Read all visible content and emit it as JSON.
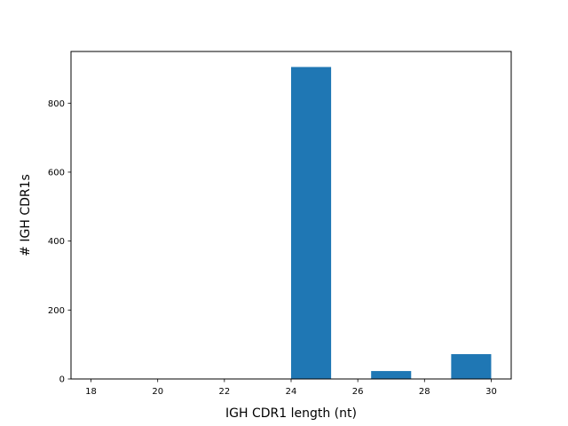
{
  "chart_data": {
    "type": "bar",
    "title": "",
    "xlabel": "IGH CDR1 length (nt)",
    "ylabel": "# IGH CDR1s",
    "xlim": [
      17.4,
      30.6
    ],
    "ylim": [
      0,
      950
    ],
    "x_ticks": [
      18,
      20,
      22,
      24,
      26,
      28,
      30
    ],
    "y_ticks": [
      0,
      200,
      400,
      600,
      800
    ],
    "grid": false,
    "legend": "none",
    "bar_color": "#1f77b4",
    "bins": [
      {
        "x_start": 18.0,
        "x_end": 19.2,
        "value": 0
      },
      {
        "x_start": 19.2,
        "x_end": 20.4,
        "value": 0
      },
      {
        "x_start": 20.4,
        "x_end": 21.6,
        "value": 0
      },
      {
        "x_start": 21.6,
        "x_end": 22.8,
        "value": 0
      },
      {
        "x_start": 22.8,
        "x_end": 24.0,
        "value": 0
      },
      {
        "x_start": 24.0,
        "x_end": 25.2,
        "value": 905
      },
      {
        "x_start": 25.2,
        "x_end": 26.4,
        "value": 0
      },
      {
        "x_start": 26.4,
        "x_end": 27.6,
        "value": 23
      },
      {
        "x_start": 27.6,
        "x_end": 28.8,
        "value": 0
      },
      {
        "x_start": 28.8,
        "x_end": 30.0,
        "value": 72
      }
    ]
  }
}
